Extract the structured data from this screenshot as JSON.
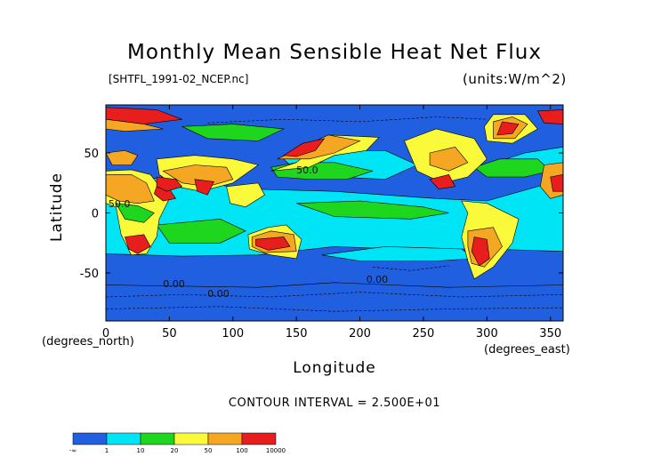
{
  "chart_data": {
    "type": "heatmap",
    "title": "Monthly Mean Sensible Heat Net Flux",
    "file_label": "[SHTFL_1991-02_NCEP.nc]",
    "units_label": "(units:W/m^2)",
    "xlabel": "Longitude",
    "ylabel": "Latitude",
    "x_units": "(degrees_east)",
    "y_units": "(degrees_north)",
    "xlim": [
      0,
      360
    ],
    "ylim": [
      -90,
      90
    ],
    "x_ticks": [
      0,
      50,
      100,
      150,
      200,
      250,
      300,
      350
    ],
    "y_ticks": [
      -50,
      0,
      50
    ],
    "contour_interval": "CONTOUR INTERVAL = 2.500E+01",
    "contour_labels": [
      "50.0",
      "50.0",
      "0.00",
      "0.00",
      "0.00"
    ],
    "colorbar": {
      "ticks": [
        "-∞",
        "1",
        "10",
        "20",
        "50",
        "100",
        "10000"
      ],
      "colors": [
        "#1f5fe0",
        "#00e5f5",
        "#1ed61e",
        "#fafa3a",
        "#f5a623",
        "#e81e1e"
      ]
    },
    "regions": [
      {
        "level": 1,
        "lon_range": [
          120,
          230
        ],
        "lat_range": [
          -25,
          25
        ]
      },
      {
        "level": 2,
        "lon_range": [
          120,
          170
        ],
        "lat_range": [
          25,
          50
        ]
      },
      {
        "level": 4,
        "lon_range": [
          115,
          155
        ],
        "lat_range": [
          -35,
          -15
        ]
      },
      {
        "level": 5,
        "lon_range": [
          285,
          300
        ],
        "lat_range": [
          -45,
          -20
        ]
      }
    ]
  }
}
